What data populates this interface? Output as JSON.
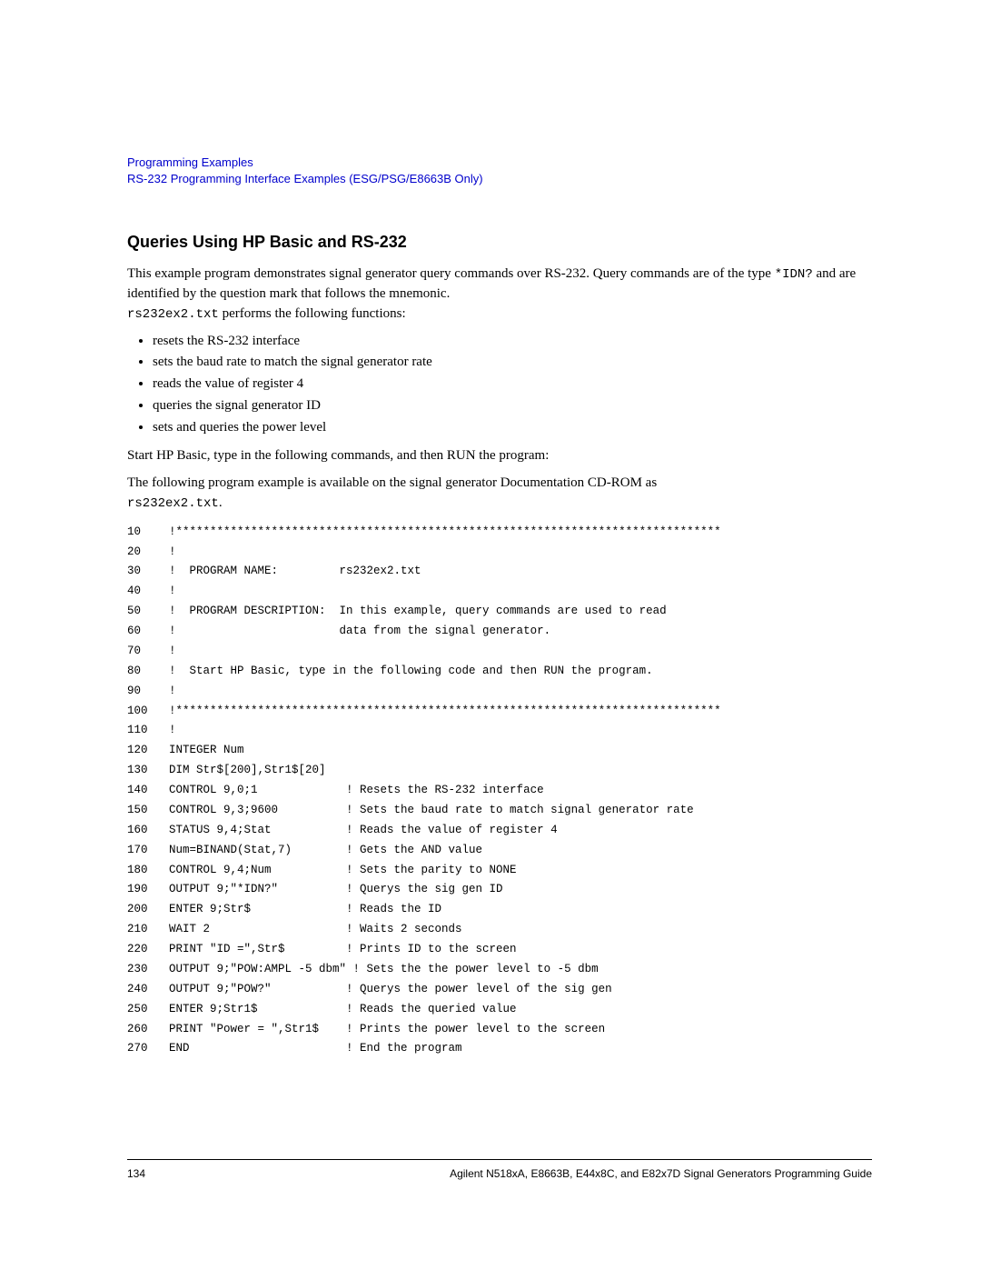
{
  "header": {
    "link1": "Programming Examples",
    "link2": "RS-232 Programming Interface Examples (ESG/PSG/E8663B Only)"
  },
  "section": {
    "heading": "Queries Using HP Basic and RS-232",
    "intro_part1": "This example program demonstrates signal generator query commands over RS-232. Query commands are of the type ",
    "intro_code": "*IDN?",
    "intro_part2": " and are identified by the question mark that follows the mnemonic. ",
    "intro_code2": "rs232ex2.txt",
    "intro_part3": " performs the following functions:",
    "bullets": [
      "resets the RS-232 interface",
      "sets the baud rate to match the signal generator rate",
      "reads the value of register 4",
      "queries the signal generator ID",
      "sets and queries the power level"
    ],
    "start_line": "Start HP Basic, type in the following commands, and then RUN the program:",
    "cd_line_part1": "The following program example is available on the signal generator Documentation CD-ROM as ",
    "cd_line_code": "rs232ex2.txt",
    "cd_line_part2": "."
  },
  "code": [
    {
      "n": "10",
      "t": "!********************************************************************************"
    },
    {
      "n": "20",
      "t": "!"
    },
    {
      "n": "30",
      "t": "!  PROGRAM NAME:         rs232ex2.txt"
    },
    {
      "n": "40",
      "t": "!"
    },
    {
      "n": "50",
      "t": "!  PROGRAM DESCRIPTION:  In this example, query commands are used to read"
    },
    {
      "n": "60",
      "t": "!                        data from the signal generator."
    },
    {
      "n": "70",
      "t": "!"
    },
    {
      "n": "80",
      "t": "!  Start HP Basic, type in the following code and then RUN the program."
    },
    {
      "n": "90",
      "t": "!"
    },
    {
      "n": "100",
      "t": "!********************************************************************************"
    },
    {
      "n": "110",
      "t": "!"
    },
    {
      "n": "120",
      "t": "INTEGER Num"
    },
    {
      "n": "130",
      "t": "DIM Str$[200],Str1$[20]"
    },
    {
      "n": "140",
      "t": "CONTROL 9,0;1             ! Resets the RS-232 interface"
    },
    {
      "n": "150",
      "t": "CONTROL 9,3;9600          ! Sets the baud rate to match signal generator rate"
    },
    {
      "n": "160",
      "t": "STATUS 9,4;Stat           ! Reads the value of register 4"
    },
    {
      "n": "170",
      "t": "Num=BINAND(Stat,7)        ! Gets the AND value"
    },
    {
      "n": "180",
      "t": "CONTROL 9,4;Num           ! Sets the parity to NONE"
    },
    {
      "n": "190",
      "t": "OUTPUT 9;\"*IDN?\"          ! Querys the sig gen ID"
    },
    {
      "n": "200",
      "t": "ENTER 9;Str$              ! Reads the ID"
    },
    {
      "n": "210",
      "t": "WAIT 2                    ! Waits 2 seconds"
    },
    {
      "n": "220",
      "t": "PRINT \"ID =\",Str$         ! Prints ID to the screen"
    },
    {
      "n": "230",
      "t": "OUTPUT 9;\"POW:AMPL -5 dbm\" ! Sets the the power level to -5 dbm"
    },
    {
      "n": "240",
      "t": "OUTPUT 9;\"POW?\"           ! Querys the power level of the sig gen"
    },
    {
      "n": "250",
      "t": "ENTER 9;Str1$             ! Reads the queried value"
    },
    {
      "n": "260",
      "t": "PRINT \"Power = \",Str1$    ! Prints the power level to the screen"
    },
    {
      "n": "270",
      "t": "END                       ! End the program"
    }
  ],
  "footer": {
    "page": "134",
    "right": "Agilent N518xA, E8663B, E44x8C, and E82x7D Signal Generators Programming Guide"
  },
  "colors": {
    "link": "#0000cc",
    "text": "#000000",
    "background": "#ffffff"
  },
  "typography": {
    "body_font": "Georgia, Times New Roman, serif",
    "heading_font": "Arial, Helvetica, sans-serif",
    "code_font": "Courier New, monospace",
    "heading_size_pt": 14,
    "body_size_pt": 11,
    "code_size_pt": 9
  }
}
